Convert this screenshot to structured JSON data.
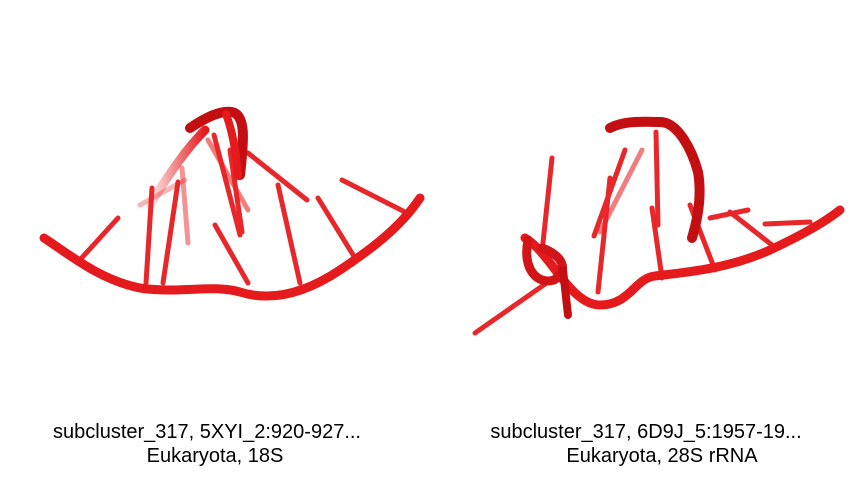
{
  "panels": [
    {
      "caption_line1": "subcluster_317, 5XYI_2:920-927...",
      "caption_line2": "Eukaryota, 18S"
    },
    {
      "caption_line1": "subcluster_317, 6D9J_5:1957-19...",
      "caption_line2": "Eukaryota, 28S rRNA"
    }
  ],
  "colors": {
    "backbone": "#e41a1c",
    "backbone_dark": "#b00000",
    "background": "#ffffff"
  }
}
